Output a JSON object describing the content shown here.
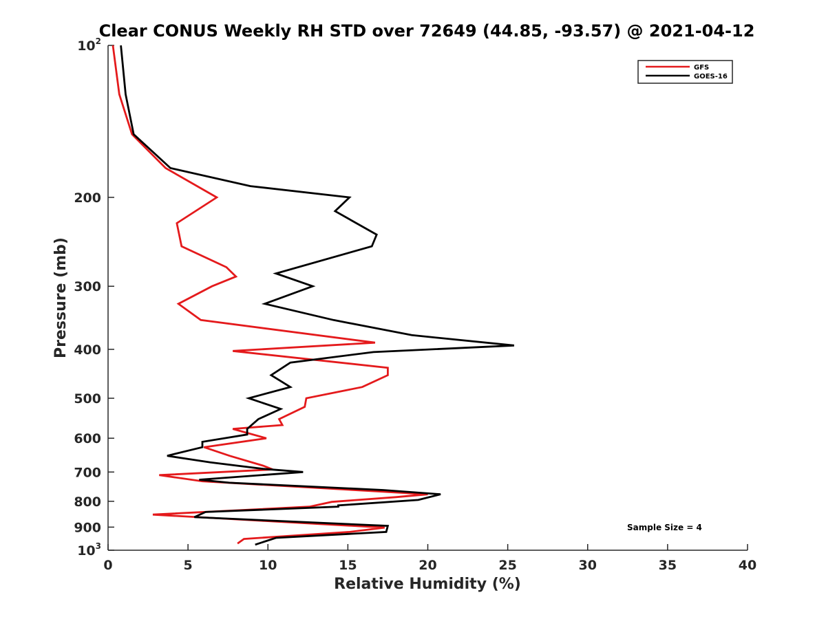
{
  "chart_data": {
    "type": "line",
    "title": "Clear CONUS Weekly RH STD over 72649 (44.85, -93.57) @ 2021-04-12",
    "xlabel": "Relative Humidity (%)",
    "ylabel": "Pressure (mb)",
    "xlim": [
      0,
      40
    ],
    "ylim": [
      100,
      1000
    ],
    "yscale": "log",
    "y_reversed": true,
    "grid": false,
    "legend_position": "top-right",
    "x_ticks": [
      0,
      5,
      10,
      15,
      20,
      25,
      30,
      35,
      40
    ],
    "x_tick_labels": [
      "0",
      "5",
      "10",
      "15",
      "20",
      "25",
      "30",
      "35",
      "40"
    ],
    "y_ticks": [
      {
        "value": 100,
        "base": "10",
        "exp": "2"
      },
      {
        "value": 200,
        "label": "200"
      },
      {
        "value": 300,
        "label": "300"
      },
      {
        "value": 400,
        "label": "400"
      },
      {
        "value": 500,
        "label": "500"
      },
      {
        "value": 600,
        "label": "600"
      },
      {
        "value": 700,
        "label": "700"
      },
      {
        "value": 800,
        "label": "800"
      },
      {
        "value": 900,
        "label": "900"
      },
      {
        "value": 1000,
        "base": "10",
        "exp": "3"
      }
    ],
    "annotation": "Sample Size = 4",
    "series": [
      {
        "name": "GFS",
        "color": "#e41a1c",
        "points": [
          [
            0.3,
            100
          ],
          [
            0.7,
            125
          ],
          [
            1.5,
            150
          ],
          [
            3.6,
            175
          ],
          [
            6.8,
            200
          ],
          [
            4.3,
            225
          ],
          [
            4.6,
            250
          ],
          [
            7.4,
            275
          ],
          [
            8.0,
            287
          ],
          [
            6.5,
            300
          ],
          [
            4.4,
            325
          ],
          [
            5.8,
            350
          ],
          [
            16.7,
            388
          ],
          [
            7.8,
            403
          ],
          [
            17.5,
            435
          ],
          [
            17.5,
            450
          ],
          [
            15.9,
            475
          ],
          [
            12.4,
            500
          ],
          [
            12.3,
            520
          ],
          [
            10.7,
            550
          ],
          [
            10.9,
            565
          ],
          [
            7.8,
            575
          ],
          [
            9.9,
            600
          ],
          [
            6.0,
            625
          ],
          [
            7.6,
            650
          ],
          [
            9.7,
            680
          ],
          [
            10.3,
            692
          ],
          [
            3.2,
            710
          ],
          [
            5.9,
            730
          ],
          [
            17.0,
            765
          ],
          [
            20.0,
            775
          ],
          [
            18.0,
            785
          ],
          [
            14.0,
            802
          ],
          [
            12.6,
            820
          ],
          [
            2.8,
            850
          ],
          [
            9.8,
            875
          ],
          [
            17.3,
            902
          ],
          [
            15.1,
            920
          ],
          [
            8.5,
            950
          ],
          [
            8.1,
            970
          ]
        ]
      },
      {
        "name": "GOES-16",
        "color": "#000000",
        "points": [
          [
            0.8,
            100
          ],
          [
            1.1,
            125
          ],
          [
            1.6,
            150
          ],
          [
            3.9,
            175
          ],
          [
            8.9,
            190
          ],
          [
            15.1,
            200
          ],
          [
            14.2,
            213
          ],
          [
            16.8,
            237
          ],
          [
            16.5,
            250
          ],
          [
            10.5,
            283
          ],
          [
            12.8,
            300
          ],
          [
            9.8,
            325
          ],
          [
            14.1,
            350
          ],
          [
            19.0,
            375
          ],
          [
            25.4,
            393
          ],
          [
            16.6,
            405
          ],
          [
            11.4,
            425
          ],
          [
            10.2,
            450
          ],
          [
            11.4,
            475
          ],
          [
            8.8,
            500
          ],
          [
            10.8,
            525
          ],
          [
            9.4,
            550
          ],
          [
            8.7,
            575
          ],
          [
            8.7,
            590
          ],
          [
            5.9,
            610
          ],
          [
            5.9,
            625
          ],
          [
            3.7,
            650
          ],
          [
            6.4,
            670
          ],
          [
            9.7,
            690
          ],
          [
            12.2,
            700
          ],
          [
            5.7,
            725
          ],
          [
            7.6,
            735
          ],
          [
            17.2,
            760
          ],
          [
            20.8,
            775
          ],
          [
            19.4,
            795
          ],
          [
            14.4,
            815
          ],
          [
            14.4,
            820
          ],
          [
            6.1,
            840
          ],
          [
            5.4,
            860
          ],
          [
            17.5,
            895
          ],
          [
            17.4,
            920
          ],
          [
            10.5,
            945
          ],
          [
            9.2,
            975
          ]
        ]
      }
    ]
  }
}
